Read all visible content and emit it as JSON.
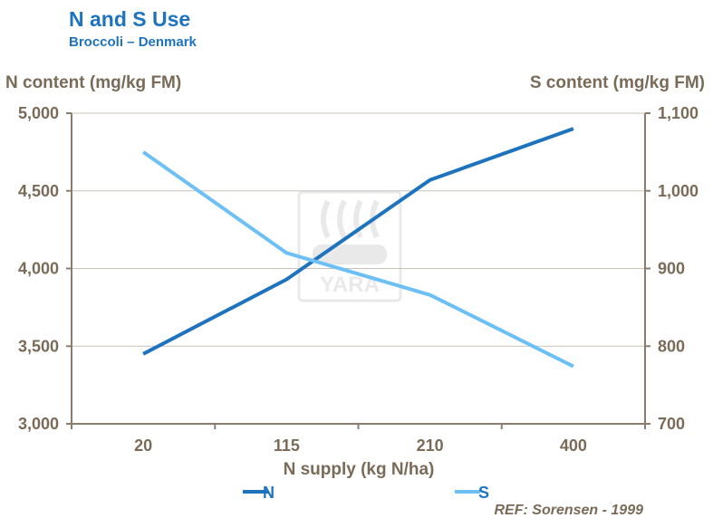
{
  "chart_data": {
    "type": "line",
    "title": "N and S Use",
    "subtitle": "Broccoli – Denmark",
    "xlabel": "N supply (kg N/ha)",
    "ylabel_left": "N content (mg/kg FM)",
    "ylabel_right": "S content (mg/kg FM)",
    "categories": [
      "20",
      "115",
      "210",
      "400"
    ],
    "y_left": {
      "min": 3000,
      "max": 5000,
      "ticks": [
        "3,000",
        "3,500",
        "4,000",
        "4,500",
        "5,000"
      ]
    },
    "y_right": {
      "min": 700,
      "max": 1100,
      "ticks": [
        "700",
        "800",
        "900",
        "1,000",
        "1,100"
      ]
    },
    "grid": true,
    "legend_position": "bottom",
    "series": [
      {
        "name": "N",
        "axis": "left",
        "color": "#1e73be",
        "values": [
          3450,
          3930,
          4570,
          4900
        ]
      },
      {
        "name": "S",
        "axis": "right",
        "color": "#6cc0f5",
        "values": [
          1050,
          920,
          866,
          774
        ]
      }
    ],
    "reference": "REF: Sorensen - 1999",
    "watermark": "YARA"
  }
}
